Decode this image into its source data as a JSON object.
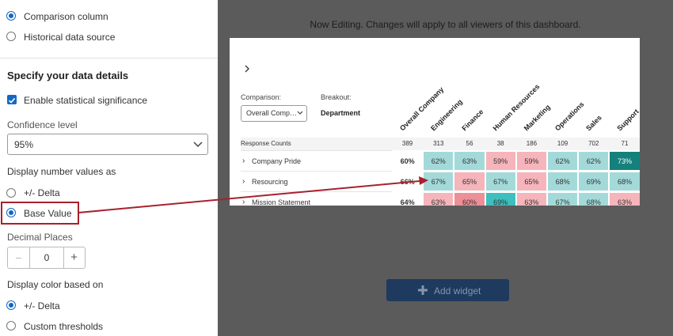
{
  "sidebar": {
    "source_options": [
      {
        "label": "Comparison column",
        "selected": true
      },
      {
        "label": "Historical data source",
        "selected": false
      }
    ],
    "heading": "Specify your data details",
    "significance": {
      "label": "Enable statistical significance",
      "checked": true
    },
    "confidence": {
      "label": "Confidence level",
      "value": "95%"
    },
    "number_values": {
      "label": "Display number values as",
      "options": [
        {
          "label": "+/- Delta",
          "selected": false
        },
        {
          "label": "Base Value",
          "selected": true
        }
      ]
    },
    "decimal_places": {
      "label": "Decimal Places",
      "value": "0"
    },
    "color_based": {
      "label": "Display color based on",
      "options": [
        {
          "label": "+/- Delta",
          "selected": true
        },
        {
          "label": "Custom thresholds",
          "selected": false
        }
      ]
    }
  },
  "banner": "Now Editing. Changes will apply to all viewers of this dashboard.",
  "widget": {
    "comparison_label": "Comparison:",
    "comparison_value": "Overall Comp…",
    "breakout_label": "Breakout:",
    "breakout_value": "Department",
    "columns": [
      "Overall Company",
      "Engineering",
      "Finance",
      "Human Resources",
      "Marketing",
      "Operations",
      "Sales",
      "Support"
    ],
    "counts_label": "Response Counts",
    "counts": [
      389,
      313,
      56,
      38,
      186,
      109,
      702,
      71
    ],
    "rows": [
      {
        "label": "Company Pride",
        "cells": [
          "60%",
          "62%",
          "63%",
          "59%",
          "59%",
          "62%",
          "62%",
          "73%"
        ],
        "colors": [
          "#ffffff",
          "#a3dad9",
          "#a3dad9",
          "#f5b5bb",
          "#f5b5bb",
          "#a3dad9",
          "#a3dad9",
          "#15817c"
        ]
      },
      {
        "label": "Resourcing",
        "cells": [
          "66%",
          "67%",
          "65%",
          "67%",
          "65%",
          "68%",
          "69%",
          "68%"
        ],
        "colors": [
          "#ffffff",
          "#a3dad9",
          "#f5b5bb",
          "#a3dad9",
          "#f5b5bb",
          "#a3dad9",
          "#a3dad9",
          "#a3dad9"
        ]
      },
      {
        "label": "Mission Statement",
        "cells": [
          "64%",
          "63%",
          "60%",
          "69%",
          "63%",
          "67%",
          "68%",
          "63%"
        ],
        "colors": [
          "#ffffff",
          "#f5b5bb",
          "#ee8f98",
          "#3dbfbe",
          "#f5b5bb",
          "#a3dad9",
          "#a3dad9",
          "#f5b5bb"
        ]
      }
    ]
  },
  "add_widget": "Add widget"
}
